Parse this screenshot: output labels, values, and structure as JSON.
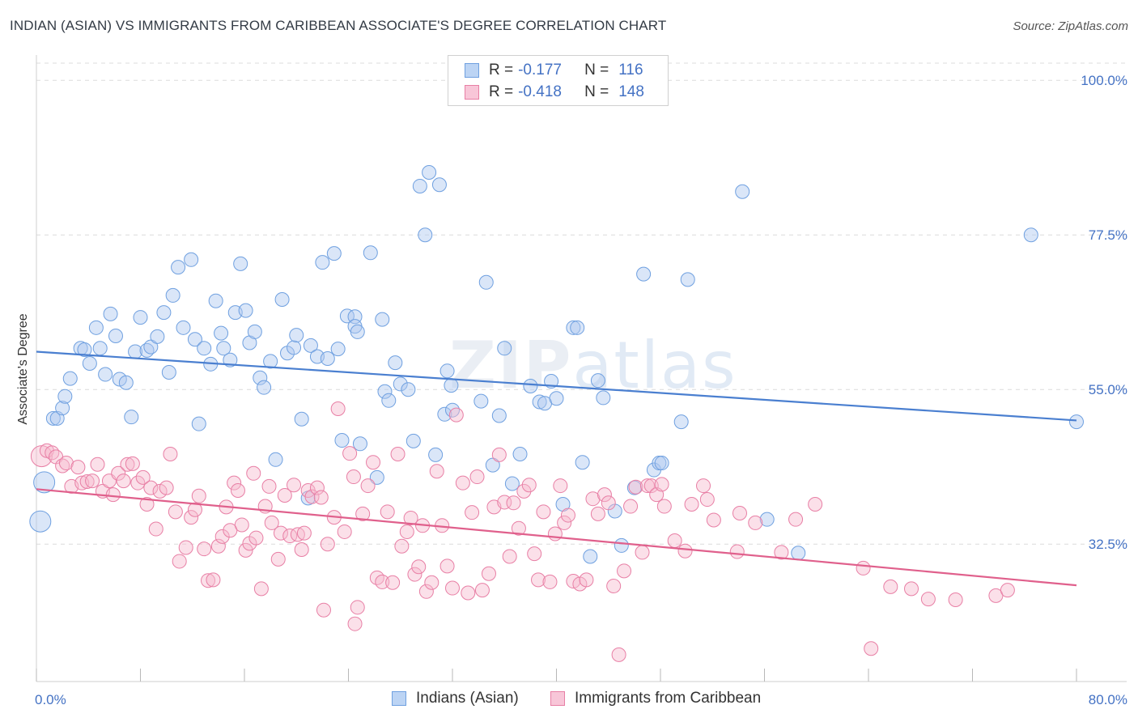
{
  "title": "INDIAN (ASIAN) VS IMMIGRANTS FROM CARIBBEAN ASSOCIATE'S DEGREE CORRELATION CHART",
  "source": "Source: ZipAtlas.com",
  "watermark": {
    "bold": "ZIP",
    "light": "atlas"
  },
  "legend": {
    "rows": [
      {
        "r_label": "R =",
        "r_value": "-0.177",
        "n_label": "N =",
        "n_value": "116",
        "color": "#6fa0e0",
        "fill": "#bcd4f4"
      },
      {
        "r_label": "R =",
        "r_value": "-0.418",
        "n_label": "N =",
        "n_value": "148",
        "color": "#e87fa5",
        "fill": "#f8c6d8"
      }
    ]
  },
  "bottom_legend": [
    {
      "label": "Indians (Asian)",
      "color": "#6fa0e0",
      "fill": "#bcd4f4"
    },
    {
      "label": "Immigrants from Caribbean",
      "color": "#e87fa5",
      "fill": "#f8c6d8"
    }
  ],
  "chart_data": {
    "type": "scatter",
    "ylabel": "Associate's Degree",
    "xlim": [
      0,
      80
    ],
    "ylim": [
      12.5,
      102.5
    ],
    "x_ticks": [
      {
        "label": "0.0%",
        "value": 0
      },
      {
        "label": "80.0%",
        "value": 80
      }
    ],
    "y_ticks": [
      {
        "label": "100.0%",
        "value": 100
      },
      {
        "label": "77.5%",
        "value": 77.5
      },
      {
        "label": "55.0%",
        "value": 55
      },
      {
        "label": "32.5%",
        "value": 32.5
      }
    ],
    "grid": true,
    "colors": {
      "blue": "#4a7fd0",
      "pink": "#e0608c"
    },
    "series": [
      {
        "name": "Indians (Asian)",
        "trend": [
          [
            0,
            60.5
          ],
          [
            80,
            50.5
          ]
        ],
        "points": [
          [
            0.3,
            35.8
          ],
          [
            0.6,
            41.5
          ],
          [
            1.3,
            50.8
          ],
          [
            1.6,
            50.8
          ],
          [
            2.0,
            52.3
          ],
          [
            2.2,
            54.0
          ],
          [
            2.6,
            56.6
          ],
          [
            3.4,
            61.0
          ],
          [
            3.7,
            60.8
          ],
          [
            4.1,
            58.8
          ],
          [
            4.6,
            64.0
          ],
          [
            4.9,
            61.0
          ],
          [
            5.3,
            57.2
          ],
          [
            5.7,
            66.0
          ],
          [
            6.1,
            62.8
          ],
          [
            6.4,
            56.5
          ],
          [
            6.9,
            56.0
          ],
          [
            7.3,
            51.0
          ],
          [
            7.6,
            60.5
          ],
          [
            8.0,
            65.5
          ],
          [
            8.5,
            60.7
          ],
          [
            8.8,
            61.2
          ],
          [
            9.3,
            62.7
          ],
          [
            9.8,
            66.2
          ],
          [
            10.2,
            57.5
          ],
          [
            10.5,
            68.7
          ],
          [
            10.9,
            72.8
          ],
          [
            11.3,
            64.0
          ],
          [
            11.9,
            73.9
          ],
          [
            12.2,
            62.3
          ],
          [
            12.5,
            50.0
          ],
          [
            12.9,
            61.0
          ],
          [
            13.4,
            58.7
          ],
          [
            13.8,
            67.9
          ],
          [
            14.2,
            63.2
          ],
          [
            14.4,
            61.0
          ],
          [
            14.9,
            59.3
          ],
          [
            15.3,
            66.2
          ],
          [
            15.7,
            73.3
          ],
          [
            16.1,
            66.5
          ],
          [
            16.4,
            61.8
          ],
          [
            16.8,
            63.4
          ],
          [
            17.2,
            56.7
          ],
          [
            17.5,
            55.3
          ],
          [
            18.0,
            59.1
          ],
          [
            18.4,
            44.8
          ],
          [
            18.9,
            68.1
          ],
          [
            19.3,
            60.3
          ],
          [
            19.8,
            61.1
          ],
          [
            20.0,
            62.9
          ],
          [
            20.4,
            50.7
          ],
          [
            20.9,
            39.2
          ],
          [
            21.1,
            61.4
          ],
          [
            21.6,
            59.8
          ],
          [
            22.0,
            73.5
          ],
          [
            22.4,
            59.5
          ],
          [
            22.9,
            74.8
          ],
          [
            23.2,
            60.9
          ],
          [
            23.5,
            47.6
          ],
          [
            23.9,
            65.7
          ],
          [
            24.5,
            65.6
          ],
          [
            24.5,
            64.2
          ],
          [
            24.7,
            63.4
          ],
          [
            24.9,
            47.1
          ],
          [
            25.7,
            74.9
          ],
          [
            26.2,
            42.2
          ],
          [
            26.6,
            65.2
          ],
          [
            26.8,
            54.7
          ],
          [
            27.1,
            53.4
          ],
          [
            27.6,
            58.9
          ],
          [
            28.0,
            55.8
          ],
          [
            28.6,
            55.0
          ],
          [
            29.0,
            47.5
          ],
          [
            29.5,
            84.6
          ],
          [
            29.9,
            77.5
          ],
          [
            30.2,
            86.6
          ],
          [
            30.7,
            45.5
          ],
          [
            31.0,
            84.8
          ],
          [
            31.4,
            51.4
          ],
          [
            31.6,
            57.7
          ],
          [
            31.9,
            55.6
          ],
          [
            32.0,
            52.0
          ],
          [
            34.2,
            53.3
          ],
          [
            34.6,
            70.6
          ],
          [
            35.1,
            44.0
          ],
          [
            35.6,
            51.2
          ],
          [
            36.0,
            61.0
          ],
          [
            36.6,
            41.3
          ],
          [
            37.2,
            45.6
          ],
          [
            38.0,
            55.5
          ],
          [
            38.7,
            53.2
          ],
          [
            39.1,
            53.0
          ],
          [
            39.6,
            56.2
          ],
          [
            40.0,
            53.7
          ],
          [
            40.5,
            38.3
          ],
          [
            41.3,
            64.0
          ],
          [
            41.6,
            64.0
          ],
          [
            42.0,
            44.4
          ],
          [
            42.6,
            30.7
          ],
          [
            43.2,
            56.3
          ],
          [
            43.6,
            53.8
          ],
          [
            44.5,
            37.3
          ],
          [
            45.0,
            32.3
          ],
          [
            46.0,
            40.7
          ],
          [
            46.7,
            71.8
          ],
          [
            47.5,
            43.3
          ],
          [
            47.9,
            44.3
          ],
          [
            48.1,
            44.3
          ],
          [
            49.6,
            50.3
          ],
          [
            50.1,
            71.0
          ],
          [
            54.3,
            83.8
          ],
          [
            56.2,
            36.1
          ],
          [
            58.6,
            31.2
          ],
          [
            80.0,
            50.3
          ],
          [
            76.5,
            77.5
          ]
        ],
        "big_points": [
          [
            0.3,
            35.8
          ],
          [
            0.6,
            41.5
          ]
        ]
      },
      {
        "name": "Immigrants from Caribbean",
        "trend": [
          [
            0,
            40.5
          ],
          [
            80,
            26.5
          ]
        ],
        "points": [
          [
            0.4,
            45.3
          ],
          [
            0.8,
            46.1
          ],
          [
            1.2,
            45.8
          ],
          [
            1.5,
            45.2
          ],
          [
            2.0,
            43.9
          ],
          [
            2.3,
            44.3
          ],
          [
            2.7,
            40.9
          ],
          [
            3.2,
            43.7
          ],
          [
            3.5,
            41.4
          ],
          [
            3.9,
            41.6
          ],
          [
            4.3,
            41.7
          ],
          [
            4.7,
            44.1
          ],
          [
            5.1,
            40.2
          ],
          [
            5.6,
            41.7
          ],
          [
            5.9,
            39.7
          ],
          [
            6.3,
            42.8
          ],
          [
            6.7,
            41.7
          ],
          [
            7.0,
            44.1
          ],
          [
            7.4,
            44.2
          ],
          [
            7.8,
            41.4
          ],
          [
            8.2,
            42.2
          ],
          [
            8.5,
            38.3
          ],
          [
            8.8,
            40.7
          ],
          [
            9.2,
            34.7
          ],
          [
            9.5,
            40.2
          ],
          [
            10.0,
            40.7
          ],
          [
            10.3,
            45.6
          ],
          [
            10.7,
            37.2
          ],
          [
            11.0,
            30.0
          ],
          [
            11.5,
            32.0
          ],
          [
            11.9,
            36.4
          ],
          [
            12.2,
            37.5
          ],
          [
            12.5,
            39.5
          ],
          [
            12.9,
            31.8
          ],
          [
            13.2,
            27.2
          ],
          [
            13.6,
            27.3
          ],
          [
            14.0,
            32.2
          ],
          [
            14.3,
            33.6
          ],
          [
            14.6,
            37.9
          ],
          [
            14.9,
            34.5
          ],
          [
            15.2,
            41.4
          ],
          [
            15.5,
            40.3
          ],
          [
            15.8,
            35.3
          ],
          [
            16.1,
            31.6
          ],
          [
            16.4,
            32.6
          ],
          [
            16.7,
            42.8
          ],
          [
            16.9,
            33.4
          ],
          [
            17.3,
            26.0
          ],
          [
            17.6,
            38.0
          ],
          [
            17.9,
            40.9
          ],
          [
            18.1,
            35.6
          ],
          [
            18.6,
            30.3
          ],
          [
            18.8,
            34.1
          ],
          [
            19.1,
            39.6
          ],
          [
            19.5,
            33.7
          ],
          [
            19.8,
            41.1
          ],
          [
            20.1,
            33.9
          ],
          [
            20.4,
            31.7
          ],
          [
            20.6,
            34.1
          ],
          [
            20.9,
            40.3
          ],
          [
            21.2,
            39.4
          ],
          [
            21.6,
            40.7
          ],
          [
            21.9,
            39.3
          ],
          [
            22.1,
            22.9
          ],
          [
            22.4,
            32.5
          ],
          [
            22.9,
            36.4
          ],
          [
            23.2,
            52.2
          ],
          [
            23.7,
            34.3
          ],
          [
            24.1,
            45.7
          ],
          [
            24.4,
            42.3
          ],
          [
            24.7,
            23.3
          ],
          [
            24.5,
            20.9
          ],
          [
            25.1,
            36.9
          ],
          [
            25.5,
            41.0
          ],
          [
            25.9,
            44.4
          ],
          [
            26.2,
            27.6
          ],
          [
            26.6,
            27.0
          ],
          [
            27.0,
            37.2
          ],
          [
            27.4,
            26.9
          ],
          [
            27.8,
            45.6
          ],
          [
            28.1,
            32.2
          ],
          [
            28.5,
            34.3
          ],
          [
            28.8,
            36.3
          ],
          [
            29.1,
            28.1
          ],
          [
            29.4,
            29.2
          ],
          [
            29.7,
            35.2
          ],
          [
            30.0,
            25.6
          ],
          [
            30.4,
            26.9
          ],
          [
            30.8,
            43.1
          ],
          [
            31.2,
            35.2
          ],
          [
            31.6,
            29.3
          ],
          [
            32.0,
            26.1
          ],
          [
            32.3,
            51.3
          ],
          [
            32.8,
            41.4
          ],
          [
            33.2,
            25.4
          ],
          [
            33.5,
            37.1
          ],
          [
            33.9,
            42.3
          ],
          [
            34.3,
            25.8
          ],
          [
            34.8,
            28.2
          ],
          [
            35.2,
            37.9
          ],
          [
            35.6,
            45.5
          ],
          [
            36.0,
            38.6
          ],
          [
            36.4,
            30.7
          ],
          [
            36.7,
            38.5
          ],
          [
            37.1,
            34.8
          ],
          [
            37.5,
            40.2
          ],
          [
            37.9,
            41.1
          ],
          [
            38.3,
            31.1
          ],
          [
            38.6,
            27.3
          ],
          [
            39.0,
            37.2
          ],
          [
            39.5,
            27.0
          ],
          [
            39.9,
            34.0
          ],
          [
            40.3,
            41.0
          ],
          [
            40.6,
            35.6
          ],
          [
            40.9,
            36.7
          ],
          [
            41.3,
            27.1
          ],
          [
            41.8,
            26.7
          ],
          [
            42.3,
            27.3
          ],
          [
            42.8,
            39.1
          ],
          [
            43.2,
            36.9
          ],
          [
            43.7,
            39.7
          ],
          [
            44.0,
            38.5
          ],
          [
            44.4,
            26.4
          ],
          [
            44.8,
            16.4
          ],
          [
            45.2,
            28.6
          ],
          [
            45.7,
            38.0
          ],
          [
            46.1,
            40.8
          ],
          [
            46.6,
            31.3
          ],
          [
            47.0,
            41.0
          ],
          [
            47.3,
            41.0
          ],
          [
            47.7,
            39.7
          ],
          [
            48.1,
            41.2
          ],
          [
            48.3,
            38.0
          ],
          [
            49.1,
            33.0
          ],
          [
            49.9,
            31.5
          ],
          [
            50.4,
            38.3
          ],
          [
            51.3,
            41.0
          ],
          [
            51.6,
            39.0
          ],
          [
            52.1,
            36.0
          ],
          [
            53.9,
            31.4
          ],
          [
            54.1,
            37.0
          ],
          [
            55.3,
            35.6
          ],
          [
            57.3,
            31.3
          ],
          [
            58.4,
            36.1
          ],
          [
            59.9,
            38.3
          ],
          [
            63.6,
            29.0
          ],
          [
            64.2,
            17.3
          ],
          [
            65.7,
            26.3
          ],
          [
            67.3,
            26.0
          ],
          [
            68.6,
            24.5
          ],
          [
            70.7,
            24.4
          ],
          [
            73.8,
            25.0
          ],
          [
            74.7,
            25.8
          ]
        ],
        "big_points": [
          [
            0.4,
            45.3
          ]
        ]
      }
    ]
  }
}
